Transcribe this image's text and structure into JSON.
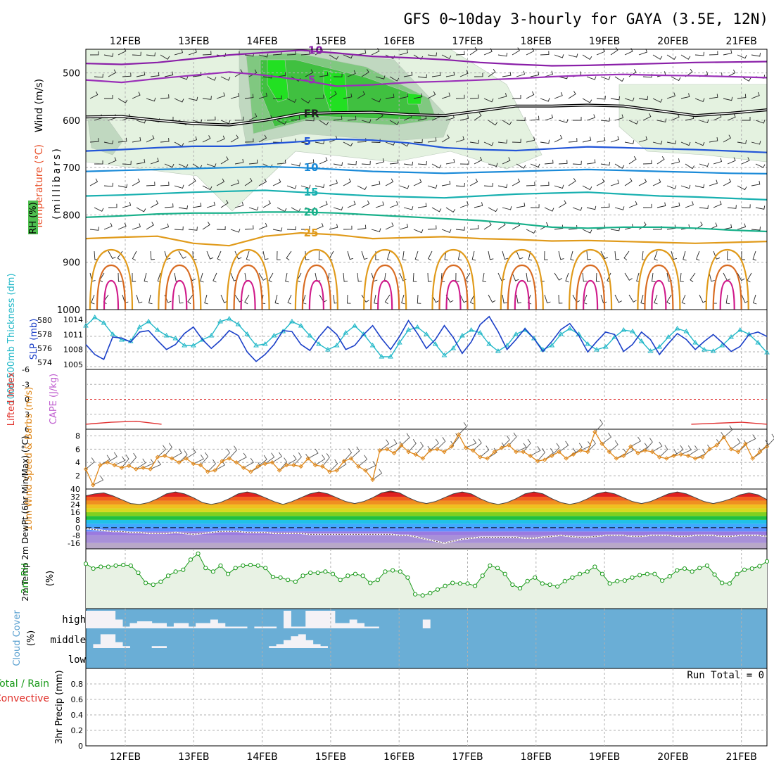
{
  "title": "GFS 0~10day 3-hourly for GAYA (3.5E, 12N)",
  "chart_data": {
    "type": "line",
    "title": "GFS 0~10day 3-hourly for GAYA (3.5E, 12N)",
    "x_dates": [
      "12FEB",
      "13FEB",
      "14FEB",
      "15FEB",
      "16FEB",
      "17FEB",
      "18FEB",
      "19FEB",
      "20FEB",
      "21FEB"
    ],
    "panels": {
      "profile": {
        "ylabel_wind": "Wind (m/s)",
        "ylabel_temp": "Temperature (°C)",
        "ylabel_rh": "RH (%)",
        "ylabel_units": "(millibars)",
        "y_ticks": [
          "500",
          "600",
          "700",
          "800",
          "900",
          "1000"
        ],
        "ylim": [
          1000,
          450
        ],
        "freezing_label": "FR",
        "isotherms": [
          {
            "label": "-10",
            "level": [
              480,
              482,
              478,
              470,
              462,
              457,
              452,
              458,
              465,
              468,
              472,
              478,
              482,
              485,
              484,
              482,
              480,
              478,
              477,
              476
            ]
          },
          {
            "label": "-5",
            "level": [
              515,
              520,
              512,
              505,
              498,
              505,
              515,
              528,
              525,
              520,
              518,
              515,
              512,
              508,
              505,
              503,
              505,
              506,
              508,
              510
            ]
          },
          {
            "label": "FR",
            "level": [
              593,
              592,
              600,
              607,
              610,
              600,
              586,
              584,
              583,
              588,
              590,
              580,
              570,
              570,
              568,
              570,
              580,
              590,
              585,
              578
            ]
          },
          {
            "label": "5",
            "level": [
              665,
              662,
              658,
              655,
              655,
              650,
              645,
              640,
              642,
              648,
              658,
              662,
              664,
              660,
              656,
              658,
              660,
              662,
              665,
              668
            ]
          },
          {
            "label": "10",
            "level": [
              708,
              706,
              704,
              702,
              700,
              698,
              700,
              704,
              708,
              710,
              712,
              710,
              708,
              706,
              704,
              706,
              708,
              710,
              712,
              713
            ]
          },
          {
            "label": "15",
            "level": [
              760,
              758,
              755,
              752,
              750,
              748,
              752,
              756,
              760,
              762,
              764,
              760,
              756,
              754,
              752,
              756,
              760,
              762,
              765,
              768
            ]
          },
          {
            "label": "20",
            "level": [
              805,
              802,
              798,
              796,
              796,
              794,
              794,
              796,
              800,
              804,
              808,
              812,
              818,
              826,
              828,
              826,
              826,
              828,
              832,
              835
            ]
          },
          {
            "label": "25",
            "level": [
              850,
              847,
              845,
              860,
              865,
              845,
              838,
              842,
              850,
              848,
              846,
              850,
              852,
              855,
              854,
              856,
              858,
              860,
              858,
              856
            ]
          }
        ],
        "isotherm_colors": {
          "-10": "#8a1fa8",
          "-5": "#9a2fb8",
          "FR": "#222222",
          "5": "#2255d8",
          "10": "#1a8ad8",
          "15": "#18b0b0",
          "20": "#18b08a",
          "25": "#e09a1a"
        }
      },
      "thickness_slp": {
        "ylabel": "1000-500mb Thickness (dm)",
        "ylabel2": "SLP (mb)",
        "thickness_ticks": [
          "574",
          "576",
          "578",
          "580"
        ],
        "slp_ticks": [
          "1005",
          "1008",
          "1011",
          "1014"
        ],
        "thickness_color": "#22b8c8",
        "slp_color": "#1a3fc8",
        "thickness": [
          579.2,
          580.4,
          579.6,
          578.0,
          577.2,
          577.0,
          579.0,
          579.8,
          578.6,
          577.8,
          577.4,
          576.4,
          576.4,
          577.2,
          577.8,
          579.8,
          580.2,
          579.4,
          578.0,
          576.4,
          576.6,
          577.8,
          578.4,
          579.8,
          579.2,
          577.8,
          576.6,
          575.8,
          576.4,
          578.2,
          579.2,
          578.0,
          576.4,
          574.8,
          574.8,
          576.8,
          578.6,
          579.0,
          578.0,
          576.6,
          575.0,
          576.0,
          577.8,
          578.6,
          578.2,
          576.6,
          575.6,
          576.4,
          578.0,
          578.6,
          577.4,
          575.8,
          576.4,
          578.0,
          578.8,
          578.0,
          576.6,
          575.8,
          576.2,
          577.6,
          578.6,
          578.4,
          577.0,
          575.6,
          576.2,
          577.6,
          578.8,
          578.4,
          576.8,
          575.8,
          575.6,
          576.4,
          577.6,
          578.6,
          578.0,
          576.8,
          575.4
        ],
        "slp": [
          1009.0,
          1007.0,
          1006.0,
          1010.5,
          1010.3,
          1009.5,
          1011.5,
          1011.8,
          1009.8,
          1008.0,
          1009.0,
          1011.2,
          1012.5,
          1010.0,
          1008.2,
          1009.8,
          1011.8,
          1010.8,
          1007.5,
          1005.6,
          1007.0,
          1009.0,
          1011.8,
          1011.6,
          1009.0,
          1007.8,
          1010.5,
          1012.6,
          1011.0,
          1008.0,
          1008.8,
          1011.0,
          1012.8,
          1010.2,
          1008.0,
          1010.6,
          1013.8,
          1011.2,
          1008.2,
          1010.0,
          1012.8,
          1010.4,
          1007.2,
          1009.5,
          1013.0,
          1014.6,
          1011.6,
          1008.0,
          1010.0,
          1012.2,
          1010.2,
          1007.6,
          1009.6,
          1012.0,
          1013.2,
          1010.8,
          1007.5,
          1009.6,
          1011.5,
          1011.0,
          1007.6,
          1009.0,
          1011.5,
          1010.0,
          1007.0,
          1009.2,
          1011.2,
          1010.0,
          1008.0,
          1009.6,
          1011.0,
          1009.4,
          1007.6,
          1008.6,
          1011.0,
          1011.5,
          1010.6
        ]
      },
      "instability": {
        "ylabel": "Lifted Index",
        "ylabel2": "CAPE (J/kg)",
        "y_ticks": [
          "-6",
          "-3",
          "0",
          "3",
          "6"
        ],
        "lifted_index": [
          5.0,
          4.6,
          4.4,
          5.0,
          null,
          null,
          null,
          null,
          null,
          null,
          null,
          null,
          null,
          null,
          null,
          null,
          null,
          null,
          null,
          null,
          null,
          null,
          null,
          null,
          5.0,
          4.8,
          4.6,
          5.0
        ]
      },
      "wind10m": {
        "ylabel": "10m Wind Speed & Barbs (m/s)",
        "y_ticks": [
          "2",
          "4",
          "6",
          "8"
        ],
        "ylim": [
          0,
          9
        ],
        "color": "#e0881a",
        "speed": [
          3.0,
          0.6,
          3.6,
          4.0,
          3.6,
          3.2,
          3.5,
          3.0,
          3.2,
          3.0,
          4.8,
          5.0,
          4.6,
          4.0,
          4.6,
          3.8,
          3.6,
          2.6,
          2.8,
          4.2,
          4.6,
          4.0,
          3.2,
          2.6,
          3.4,
          3.8,
          4.0,
          2.8,
          3.6,
          3.6,
          3.4,
          4.6,
          3.6,
          3.4,
          2.6,
          2.8,
          4.2,
          4.6,
          3.4,
          2.8,
          1.4,
          5.8,
          6.0,
          5.4,
          6.6,
          5.6,
          5.2,
          4.6,
          5.8,
          6.0,
          5.6,
          6.4,
          8.2,
          6.2,
          5.8,
          4.8,
          4.6,
          5.6,
          6.2,
          6.6,
          5.6,
          5.6,
          5.0,
          4.2,
          4.4,
          5.0,
          5.6,
          4.6,
          5.2,
          5.8,
          5.6,
          8.6,
          6.8,
          5.6,
          4.6,
          5.0,
          6.4,
          5.4,
          5.8,
          5.6,
          4.8,
          4.6,
          5.0,
          5.2,
          5.0,
          4.6,
          4.8,
          6.0,
          6.6,
          7.8,
          6.0,
          5.6,
          6.8,
          4.6,
          5.6,
          6.4
        ]
      },
      "temperature": {
        "ylabel": "2m Temp 2m DewPt (6hr Min/Max) (°C)",
        "y_ticks": [
          "40",
          "32",
          "24",
          "16",
          "8",
          "0",
          "-8",
          "-16"
        ],
        "ylim": [
          -22,
          40
        ],
        "temp": [
          33,
          35,
          36,
          33,
          29,
          25,
          24,
          26,
          30,
          35,
          37,
          35,
          31,
          26,
          24,
          26,
          30,
          35,
          37,
          35,
          31,
          27,
          24,
          27,
          31,
          35,
          37,
          35,
          31,
          27,
          25,
          27,
          31,
          36,
          38,
          36,
          31,
          27,
          25,
          27,
          31,
          35,
          37,
          35,
          30,
          26,
          24,
          26,
          30,
          35,
          37,
          35,
          30,
          26,
          24,
          26,
          30,
          35,
          37,
          35,
          31,
          27,
          25,
          27,
          31,
          35,
          37,
          35,
          31,
          27,
          25,
          27,
          30,
          34,
          36,
          34,
          29
        ],
        "dewpoint": [
          -1,
          -2,
          -3,
          -4,
          -4,
          -5,
          -5,
          -6,
          -6,
          -6,
          -5,
          -6,
          -7,
          -6,
          -5,
          -4,
          -4,
          -4,
          -5,
          -5,
          -5,
          -6,
          -6,
          -6,
          -6,
          -7,
          -7,
          -7,
          -7,
          -7,
          -7,
          -7,
          -7,
          -7,
          -7,
          -8,
          -8,
          -10,
          -12,
          -14,
          -16,
          -14,
          -12,
          -11,
          -10,
          -10,
          -10,
          -10,
          -10,
          -11,
          -11,
          -10,
          -9,
          -8,
          -9,
          -10,
          -10,
          -9,
          -8,
          -8,
          -8,
          -9,
          -9,
          -8,
          -8,
          -8,
          -9,
          -9,
          -8,
          -8,
          -8,
          -9,
          -9,
          -8,
          -8,
          -8,
          -9
        ]
      },
      "rh2m": {
        "ylabel": "2m RH",
        "units": "(%)",
        "color": "#1a9a1a",
        "ylim": [
          0,
          100
        ],
        "rh": [
          75,
          67,
          70,
          70,
          72,
          73,
          72,
          60,
          43,
          40,
          45,
          55,
          62,
          65,
          82,
          92,
          68,
          62,
          72,
          58,
          68,
          72,
          73,
          72,
          68,
          53,
          52,
          48,
          45,
          55,
          60,
          60,
          62,
          58,
          48,
          55,
          58,
          55,
          43,
          48,
          62,
          64,
          62,
          52,
          24,
          22,
          26,
          32,
          38,
          43,
          42,
          42,
          38,
          55,
          72,
          68,
          58,
          40,
          34,
          46,
          52,
          42,
          40,
          37,
          46,
          52,
          58,
          62,
          70,
          58,
          42,
          46,
          47,
          52,
          56,
          58,
          58,
          47,
          54,
          64,
          67,
          62,
          68,
          72,
          57,
          43,
          42,
          58,
          65,
          67,
          71,
          79
        ]
      },
      "cloud_cover": {
        "ylabel": "Cloud Cover",
        "units": "(%)",
        "levels": [
          "high",
          "middle",
          "low"
        ],
        "sky_color": "#6aaed6",
        "cloud_color": "#f4f2f6",
        "high": [
          100,
          100,
          100,
          100,
          50,
          10,
          30,
          40,
          40,
          30,
          30,
          10,
          30,
          30,
          10,
          30,
          30,
          50,
          30,
          10,
          10,
          10,
          0,
          10,
          10,
          10,
          0,
          100,
          10,
          10,
          100,
          100,
          100,
          100,
          30,
          30,
          50,
          30,
          10,
          10,
          0,
          0,
          0,
          0,
          0,
          0,
          50,
          0,
          0,
          0,
          0,
          0,
          0,
          0,
          0,
          0,
          0,
          0,
          0,
          0,
          0,
          0,
          0,
          0,
          0,
          0,
          0,
          0,
          0,
          0,
          0,
          0,
          0,
          0,
          0,
          0,
          0,
          0,
          0,
          0,
          0,
          0,
          0,
          0,
          0,
          0,
          0,
          0,
          0,
          0,
          0,
          0,
          0
        ],
        "middle": [
          0,
          20,
          70,
          70,
          30,
          10,
          0,
          0,
          0,
          10,
          10,
          0,
          0,
          0,
          0,
          0,
          0,
          0,
          0,
          0,
          0,
          0,
          0,
          0,
          0,
          10,
          20,
          40,
          60,
          70,
          40,
          20,
          10,
          0,
          0,
          0,
          0,
          0,
          0,
          0,
          0,
          0,
          0,
          0,
          0,
          0,
          0,
          0,
          0,
          0,
          0,
          0,
          0,
          0,
          0,
          0,
          0,
          0,
          0,
          0,
          0,
          0,
          0,
          0,
          0,
          0,
          0,
          0,
          0,
          0,
          0,
          0,
          0,
          0,
          0,
          0,
          0,
          0,
          0,
          0,
          0,
          0,
          0,
          0,
          0,
          0,
          0,
          0,
          0,
          0,
          0,
          0,
          0
        ],
        "low": [
          0,
          0,
          0,
          0,
          0,
          0,
          0,
          0,
          0,
          0,
          0,
          0,
          0,
          0,
          0,
          0,
          0,
          0,
          0,
          0,
          0,
          0,
          0,
          0,
          0,
          0,
          0,
          0,
          0,
          0,
          0,
          0,
          0,
          0,
          0,
          0,
          0,
          0,
          0,
          0,
          0,
          0,
          0,
          0,
          0,
          0,
          0,
          0,
          0,
          0,
          0,
          0,
          0,
          0,
          0,
          0,
          0,
          0,
          0,
          0,
          0,
          0,
          0,
          0,
          0,
          0,
          0,
          0,
          0,
          0,
          0,
          0,
          0,
          0,
          0,
          0,
          0,
          0,
          0,
          0,
          0,
          0,
          0,
          0,
          0,
          0,
          0,
          0,
          0,
          0,
          0,
          0,
          0
        ]
      },
      "precip": {
        "ylabel": "3hr Precip (mm)",
        "legend": "Total / Rain",
        "legend2": "Convective",
        "y_ticks": [
          "0",
          "0.2",
          "0.4",
          "0.6",
          "0.8"
        ],
        "ylim": [
          0,
          1.0
        ],
        "run_total": "Run Total = 0",
        "total": []
      }
    }
  }
}
